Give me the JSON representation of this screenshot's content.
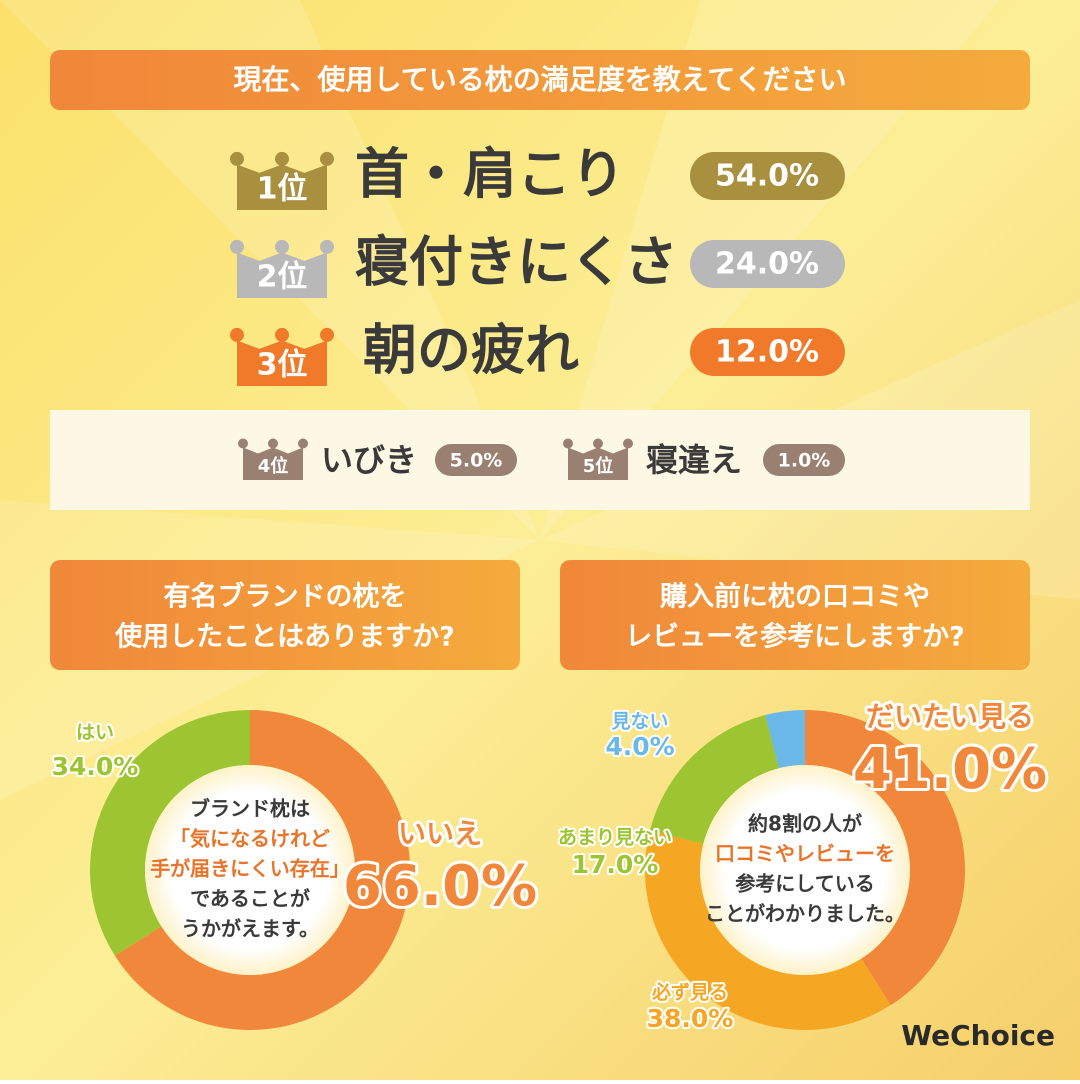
{
  "header": {
    "title": "現在、使用している枕の満足度を教えてください"
  },
  "ranking": {
    "top": [
      {
        "rank": "1位",
        "label": "首・肩こり",
        "value": "54.0%"
      },
      {
        "rank": "2位",
        "label": "寝付きにくさ",
        "value": "24.0%"
      },
      {
        "rank": "3位",
        "label": "朝の疲れ",
        "value": "12.0%"
      }
    ],
    "others": [
      {
        "rank": "4位",
        "label": "いびき",
        "value": "5.0%"
      },
      {
        "rank": "5位",
        "label": "寝違え",
        "value": "1.0%"
      }
    ]
  },
  "chart_data": [
    {
      "type": "donut",
      "title": [
        "有名ブランドの枕を",
        "使用したことはありますか?"
      ],
      "categories": [
        "いいえ",
        "はい"
      ],
      "values": [
        66,
        34
      ],
      "value_labels": [
        "66.0%",
        "34.0%"
      ],
      "colors": [
        "#f0873a",
        "#9dc431"
      ],
      "center_text": [
        "ブランド枕は",
        "「気になるけれど",
        "手が届きにくい存在」",
        "であることが",
        "うかがえます。"
      ]
    },
    {
      "type": "donut",
      "title": [
        "購入前に枕の口コミや",
        "レビューを参考にしますか?"
      ],
      "categories": [
        "だいたい見る",
        "必ず見る",
        "あまり見ない",
        "見ない"
      ],
      "values": [
        41,
        38,
        17,
        4
      ],
      "value_labels": [
        "41.0%",
        "38.0%",
        "17.0%",
        "4.0%"
      ],
      "colors": [
        "#f0873a",
        "#f5a623",
        "#9dc431",
        "#6ab8e8"
      ],
      "center_text": [
        "約8割の人が",
        "口コミやレビューを",
        "参考にしている",
        "ことがわかりました。"
      ]
    }
  ],
  "logo": "WeChoice"
}
